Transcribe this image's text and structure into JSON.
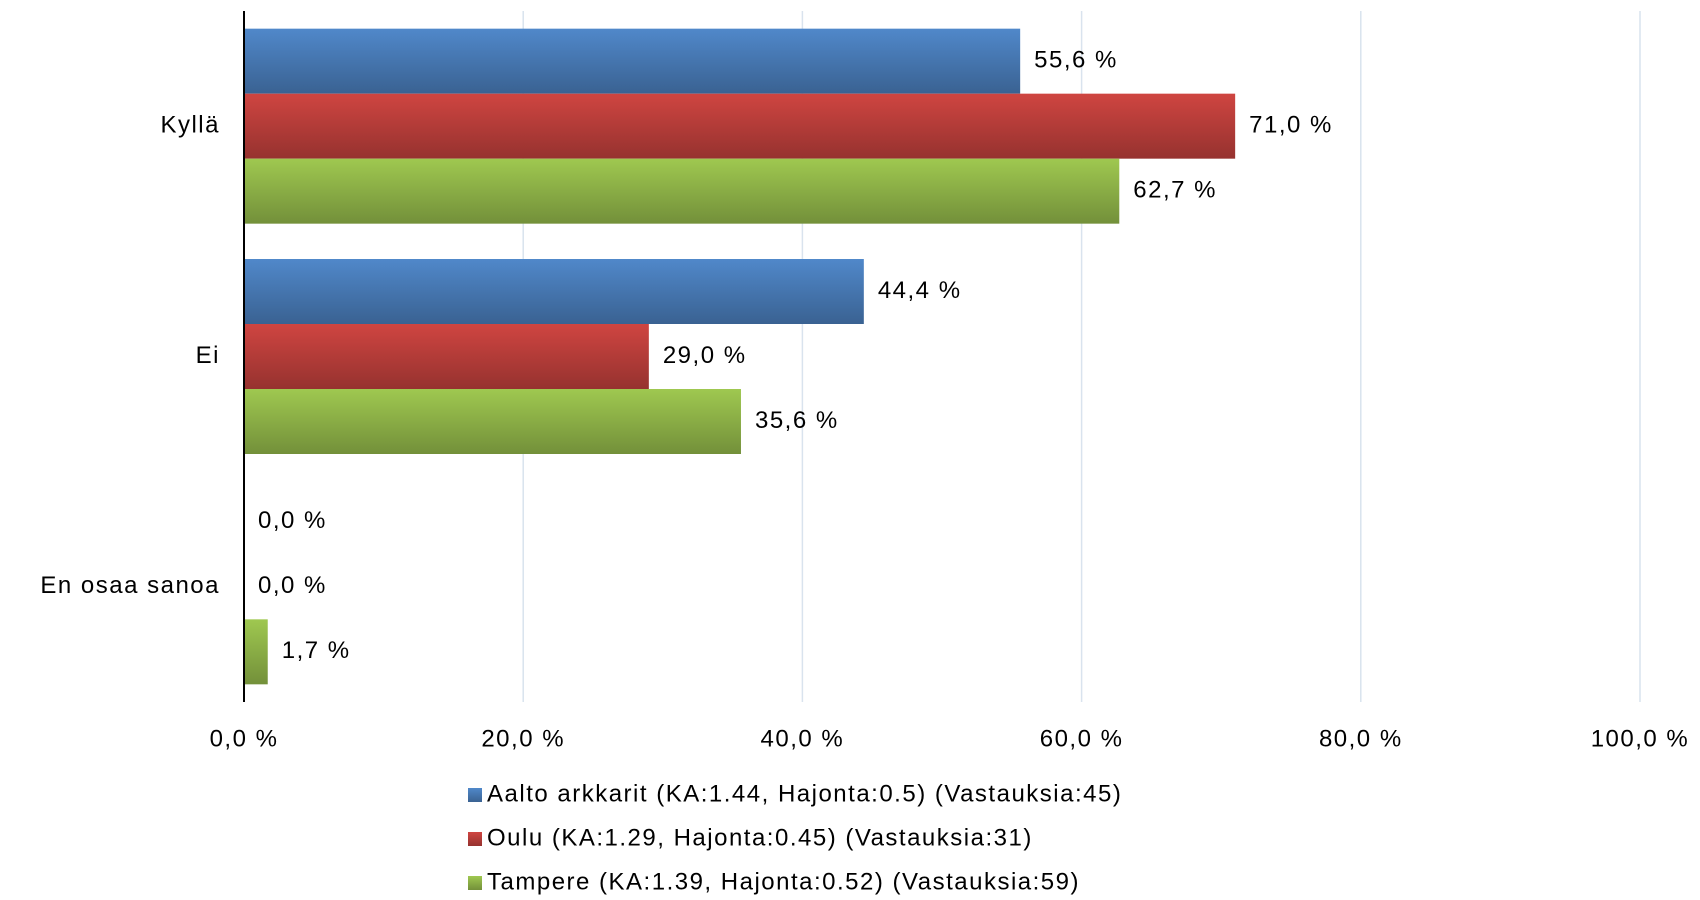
{
  "chart_data": {
    "type": "hbar",
    "categories": [
      "Kyllä",
      "Ei",
      "En osaa sanoa"
    ],
    "series": [
      {
        "name": "Aalto arkkarit (KA:1.44, Hajonta:0.5) (Vastauksia:45)",
        "color": "#4a7ebb",
        "values": [
          55.6,
          44.4,
          0.0
        ],
        "value_labels": [
          "55,6 %",
          "44,4 %",
          "0,0 %"
        ]
      },
      {
        "name": "Oulu (KA:1.29, Hajonta:0.45) (Vastauksia:31)",
        "color": "#c0403c",
        "values": [
          71.0,
          29.0,
          0.0
        ],
        "value_labels": [
          "71,0 %",
          "29,0 %",
          "0,0 %"
        ]
      },
      {
        "name": "Tampere (KA:1.39, Hajonta:0.52) (Vastauksia:59)",
        "color": "#93b94a",
        "values": [
          62.7,
          35.6,
          1.7
        ],
        "value_labels": [
          "62,7 %",
          "35,6 %",
          "1,7 %"
        ]
      }
    ],
    "xlim": [
      0,
      100
    ],
    "xticks": [
      {
        "value": 0,
        "label": "0,0 %"
      },
      {
        "value": 20,
        "label": "20,0 %"
      },
      {
        "value": 40,
        "label": "40,0 %"
      },
      {
        "value": 60,
        "label": "60,0 %"
      },
      {
        "value": 80,
        "label": "80,0 %"
      },
      {
        "value": 100,
        "label": "100,0 %"
      }
    ],
    "grid": true,
    "legend": "bottom"
  }
}
